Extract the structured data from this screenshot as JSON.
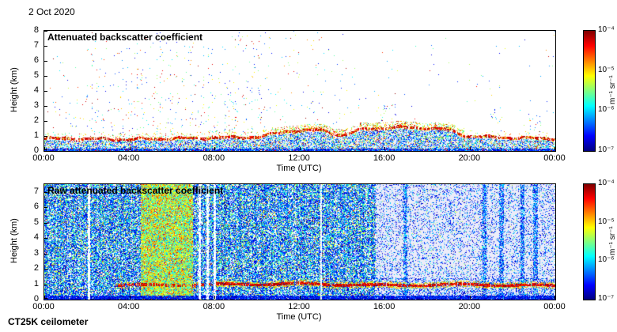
{
  "page": {
    "date_label": "2 Oct 2020",
    "instrument_label": "CT25K ceilometer"
  },
  "colorbar": {
    "ticks": [
      "10⁻⁴",
      "10⁻⁵",
      "10⁻⁶",
      "10⁻⁷"
    ],
    "unit_label": "m⁻¹ sr⁻¹",
    "scale": "log",
    "min": 1e-07,
    "max": 0.0001,
    "colormap": "jet",
    "gradient_stops": [
      "#7f0000",
      "#ff0000",
      "#ffff00",
      "#00ffff",
      "#0000ff",
      "#00007f"
    ],
    "gradient_positions_pct": [
      0,
      12.5,
      37.5,
      62.5,
      87.5,
      100
    ]
  },
  "chart_data": [
    {
      "type": "heatmap",
      "panel": "processed",
      "title": "Attenuated backscatter coefficient",
      "xlabel": "Time (UTC)",
      "ylabel": "Height (km)",
      "x_ticks": [
        "00:00",
        "04:00",
        "08:00",
        "12:00",
        "16:00",
        "20:00",
        "00:00"
      ],
      "x_range_hours": [
        0,
        24
      ],
      "y_range_km": [
        0,
        8
      ],
      "color_scale": {
        "colormap": "jet",
        "scale": "log",
        "min": 1e-07,
        "max": 0.0001,
        "unit": "m⁻¹ sr⁻¹"
      },
      "aerosol_layer_top_km_vs_hour": [
        [
          0,
          0.85
        ],
        [
          4,
          0.8
        ],
        [
          8,
          0.9
        ],
        [
          10,
          0.95
        ],
        [
          11.5,
          1.35
        ],
        [
          13,
          1.4
        ],
        [
          14,
          1.05
        ],
        [
          15,
          1.5
        ],
        [
          17,
          1.6
        ],
        [
          19,
          1.45
        ],
        [
          19.8,
          1.0
        ],
        [
          22,
          0.9
        ],
        [
          24,
          0.85
        ]
      ],
      "cloud_echo_hours": [
        1.0,
        9.0
      ],
      "features": [
        "continuous aerosol / boundary layer below ~1.5 km all day with strong (red, ~1e-4) backscatter at its top near 0.8-1 km",
        "scattered weak cloud and noise echoes between 1.5 and 8 km, mostly 01:00-09:00",
        "elevated layer near 1.3-1.8 km around 11:00-14:00 and again 15:00-19:30",
        "clean, nearly echo-free air above 2 km after ~14:00 with isolated echoes near 16:00, 21:00 and 23:00"
      ]
    },
    {
      "type": "heatmap",
      "panel": "raw",
      "title": "Raw attenuated backscatter coefficient",
      "xlabel": "Time (UTC)",
      "ylabel": "Height (km)",
      "x_ticks": [
        "00:00",
        "04:00",
        "08:00",
        "12:00",
        "16:00",
        "20:00",
        "00:00"
      ],
      "x_range_hours": [
        0,
        24
      ],
      "y_range_km": [
        0,
        7.5
      ],
      "color_scale": {
        "colormap": "jet",
        "scale": "log",
        "min": 1e-07,
        "max": 0.0001,
        "unit": "m⁻¹ sr⁻¹"
      },
      "high_noise_band_hours": [
        4.5,
        6.95
      ],
      "noise_transition_hour": 15.55,
      "gap_columns_hours": [
        [
          2.02,
          2.12
        ],
        [
          7.22,
          7.34
        ],
        [
          7.6,
          7.7
        ],
        [
          7.93,
          8.03
        ],
        [
          12.95,
          13.03
        ]
      ],
      "noisy_columns_hours": [
        [
          16.85,
          17.05
        ],
        [
          20.55,
          20.75
        ],
        [
          21.35,
          21.55
        ],
        [
          22.35,
          22.55
        ],
        [
          22.95,
          23.15
        ]
      ],
      "aerosol_layer_top_km_vs_hour": [
        [
          3.5,
          0.95
        ],
        [
          8,
          1.0
        ],
        [
          12,
          1.05
        ],
        [
          16,
          0.95
        ],
        [
          20,
          1.0
        ],
        [
          24,
          0.92
        ]
      ],
      "features": [
        "dense background noise (blue) filling 0-7.5 km from 00:00 to ~15:30",
        "period of much stronger noise (green/yellow) from ~04:30 to ~07:00",
        "narrow white data-gap columns near 02:00, 07:15-08:00 and 13:00",
        "strongly reduced noise (light background) after ~15:30 with a few noisier profiles near 17:00, 20:40, 21:30, 22:30 and 23:00",
        "aerosol layer top visible as a red line near 1 km from ~03:30 onward"
      ]
    }
  ]
}
